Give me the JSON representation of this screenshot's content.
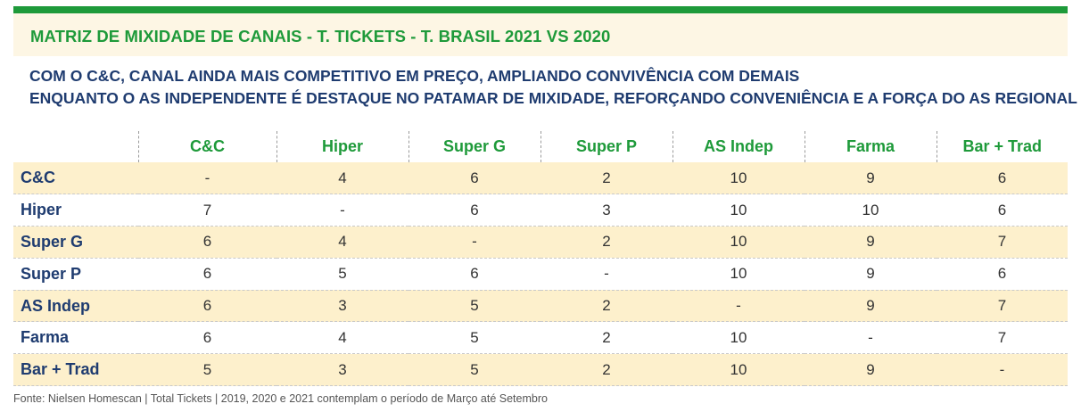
{
  "title": "MATRIZ DE MIXIDADE DE CANAIS - T. TICKETS - T. BRASIL 2021 VS 2020",
  "subtitle": {
    "line1": "COM O C&C, CANAL AINDA MAIS COMPETITIVO EM PREÇO, AMPLIANDO CONVIVÊNCIA COM DEMAIS",
    "line2": "ENQUANTO O AS INDEPENDENTE É DESTAQUE NO PATAMAR DE MIXIDADE, REFORÇANDO CONVENIÊNCIA E A FORÇA DO AS REGIONAL"
  },
  "table": {
    "columns": [
      "C&C",
      "Hiper",
      "Super G",
      "Super P",
      "AS Indep",
      "Farma",
      "Bar + Trad"
    ],
    "rows": [
      {
        "label": "C&C",
        "cells": [
          "-",
          "4",
          "6",
          "2",
          "10",
          "9",
          "6"
        ]
      },
      {
        "label": "Hiper",
        "cells": [
          "7",
          "-",
          "6",
          "3",
          "10",
          "10",
          "6"
        ]
      },
      {
        "label": "Super G",
        "cells": [
          "6",
          "4",
          "-",
          "2",
          "10",
          "9",
          "7"
        ]
      },
      {
        "label": "Super P",
        "cells": [
          "6",
          "5",
          "6",
          "-",
          "10",
          "9",
          "6"
        ]
      },
      {
        "label": "AS Indep",
        "cells": [
          "6",
          "3",
          "5",
          "2",
          "-",
          "9",
          "7"
        ]
      },
      {
        "label": "Farma",
        "cells": [
          "6",
          "4",
          "5",
          "2",
          "10",
          "-",
          "7"
        ]
      },
      {
        "label": "Bar + Trad",
        "cells": [
          "5",
          "3",
          "5",
          "2",
          "10",
          "9",
          "-"
        ]
      }
    ]
  },
  "source": "Fonte: Nielsen Homescan | Total Tickets | 2019, 2020 e 2021 contemplam o período de Março até Setembro",
  "colors": {
    "accent_green": "#1e9a3a",
    "navy": "#1f3c70",
    "row_band": "#fdf0cc",
    "title_band": "#fdf6e4"
  }
}
